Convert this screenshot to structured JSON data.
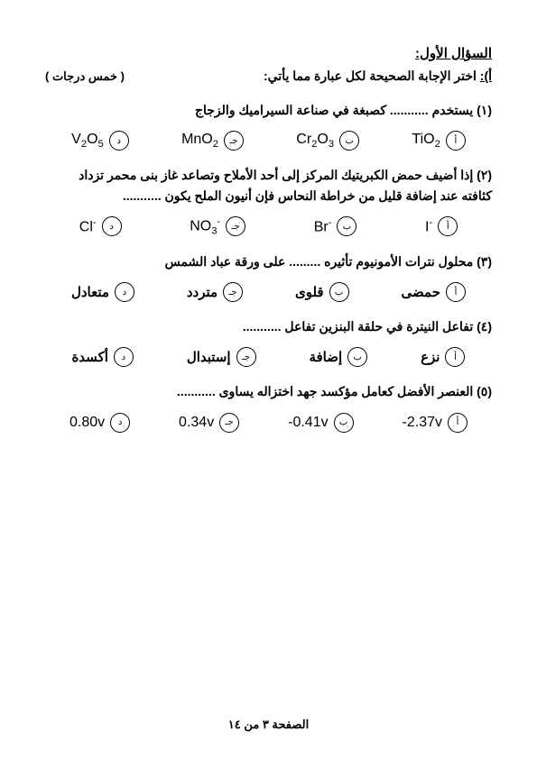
{
  "header": {
    "title": "السؤال الأول:",
    "instruction_prefix": "أ):",
    "instruction": "اختر الإجابة الصحيحة لكل عبارة مما يأتي:",
    "marks": "( خمس درجات )"
  },
  "questions": [
    {
      "text": "(١) يستخدم ........... كصبغة في صناعة السيراميك والزجاج",
      "options": [
        {
          "letter": "أ",
          "html": "TiO<span class='sub'>2</span>"
        },
        {
          "letter": "ب",
          "html": "Cr<span class='sub'>2</span>O<span class='sub'>3</span>"
        },
        {
          "letter": "جـ",
          "html": "MnO<span class='sub'>2</span>"
        },
        {
          "letter": "د",
          "html": "V<span class='sub'>2</span>O<span class='sub'>5</span>"
        }
      ]
    },
    {
      "text": "(٢) إذا أضيف حمض الكبريتيك المركز إلى أحد الأملاح وتصاعد غاز بنى محمر تزداد كثافته عند إضافة قليل من خراطة النحاس فإن أنيون الملح يكون ...........",
      "options": [
        {
          "letter": "أ",
          "html": "I<span class='sup'>-</span>"
        },
        {
          "letter": "ب",
          "html": "Br<span class='sup'>-</span>"
        },
        {
          "letter": "جـ",
          "html": "NO<span class='sub'>3</span><span class='sup'>-</span>"
        },
        {
          "letter": "د",
          "html": "Cl<span class='sup'>-</span>"
        }
      ]
    },
    {
      "text": "(٣) محلول نترات الأمونيوم تأثيره ......... على ورقة عباد الشمس",
      "options_ar": [
        {
          "letter": "أ",
          "text": "حمضى"
        },
        {
          "letter": "ب",
          "text": "قلوى"
        },
        {
          "letter": "جـ",
          "text": "متردد"
        },
        {
          "letter": "د",
          "text": "متعادل"
        }
      ]
    },
    {
      "text": "(٤) تفاعل النيترة في حلقة البنزين تفاعل ...........",
      "options_ar": [
        {
          "letter": "أ",
          "text": "نزع"
        },
        {
          "letter": "ب",
          "text": "إضافة"
        },
        {
          "letter": "جـ",
          "text": "إستبدال"
        },
        {
          "letter": "د",
          "text": "أكسدة"
        }
      ]
    },
    {
      "text": "(٥) العنصر الأفضل كعامل مؤكسد جهد اختزاله يساوى ...........",
      "options": [
        {
          "letter": "أ",
          "html": "-2.37v"
        },
        {
          "letter": "ب",
          "html": "-0.41v"
        },
        {
          "letter": "جـ",
          "html": "0.34v"
        },
        {
          "letter": "د",
          "html": "0.80v"
        }
      ]
    }
  ],
  "footer": "الصفحة ٣ من ١٤"
}
